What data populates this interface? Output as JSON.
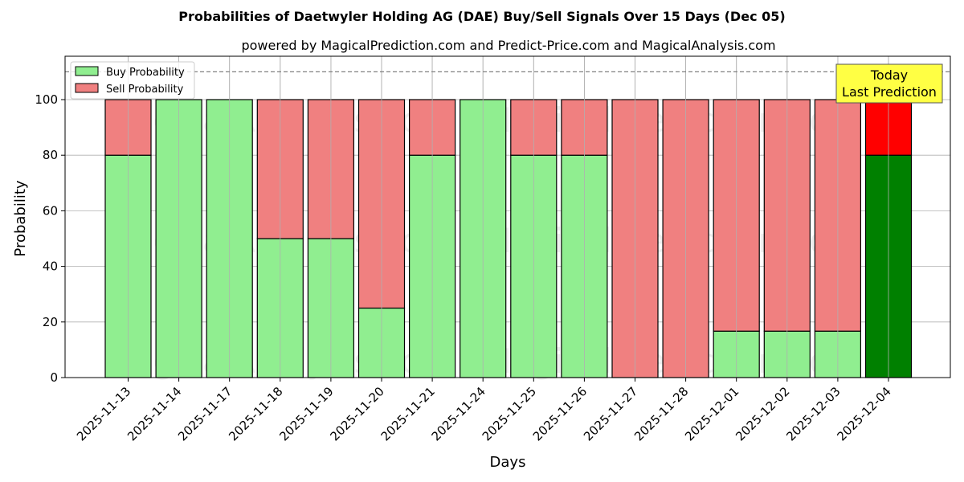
{
  "chart_data": {
    "type": "bar",
    "stacked": true,
    "title": "Probabilities of Daetwyler Holding AG (DAE) Buy/Sell Signals Over 15 Days (Dec 05)",
    "subtitle": "powered by MagicalPrediction.com and Predict-Price.com and MagicalAnalysis.com",
    "xlabel": "Days",
    "ylabel": "Probability",
    "ylim": [
      0,
      115.5
    ],
    "yticks": [
      0,
      20,
      40,
      60,
      80,
      100
    ],
    "grid": true,
    "legend_position": "upper left",
    "categories": [
      "2025-11-13",
      "2025-11-14",
      "2025-11-17",
      "2025-11-18",
      "2025-11-19",
      "2025-11-20",
      "2025-11-21",
      "2025-11-24",
      "2025-11-25",
      "2025-11-26",
      "2025-11-27",
      "2025-11-28",
      "2025-12-01",
      "2025-12-02",
      "2025-12-03",
      "2025-12-04"
    ],
    "series": [
      {
        "name": "Buy Probability",
        "color": "#90ee90",
        "values": [
          80,
          100,
          100,
          50,
          50,
          25,
          80,
          100,
          80,
          80,
          0,
          0,
          16.7,
          16.7,
          16.7,
          80
        ]
      },
      {
        "name": "Sell Probability",
        "color": "#f08080",
        "values": [
          20,
          0,
          0,
          50,
          50,
          75,
          20,
          0,
          20,
          20,
          100,
          100,
          83.3,
          83.3,
          83.3,
          20
        ]
      }
    ],
    "highlight": {
      "index": 15,
      "buy_color": "#008000",
      "sell_color": "#ff0000"
    },
    "reference_line": {
      "y": 110,
      "style": "dashed",
      "color": "#808080"
    },
    "annotation": {
      "line1": "Today",
      "line2": "Last Prediction",
      "background": "#ffff44"
    },
    "watermarks": [
      "MagicalAnalysis.com",
      "MagicalPrediction.com"
    ]
  }
}
